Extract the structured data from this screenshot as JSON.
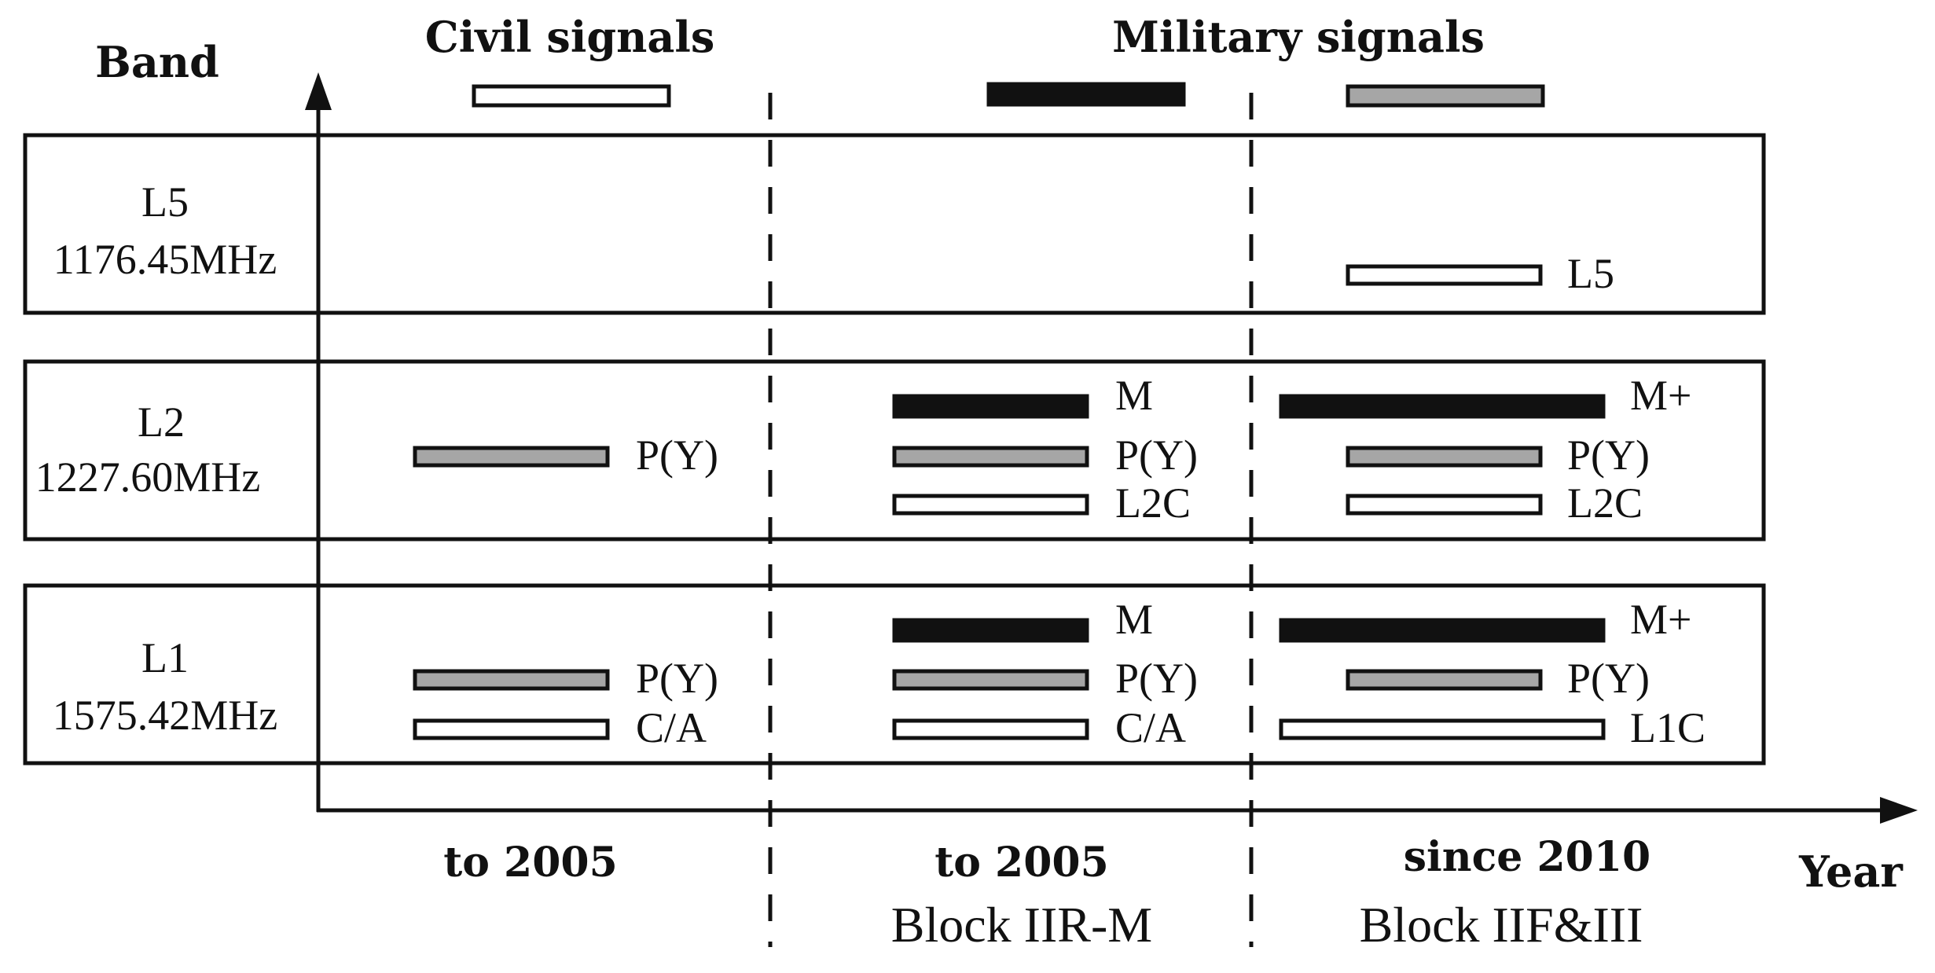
{
  "axes": {
    "y_label": "Band",
    "x_label": "Year"
  },
  "legend": [
    {
      "key": "civil",
      "label": "Civil signals",
      "fill": "#ffffff"
    },
    {
      "key": "military",
      "label": "Military signals",
      "fill": "#111111"
    },
    {
      "key": "legacy",
      "label": "",
      "fill": "#a6a6a6"
    }
  ],
  "bands": [
    {
      "key": "l5",
      "name": "L5",
      "frequency": "1176.45MHz"
    },
    {
      "key": "l2",
      "name": "L2",
      "frequency": "1227.60MHz"
    },
    {
      "key": "l1",
      "name": "L1",
      "frequency": "1575.42MHz"
    }
  ],
  "periods": [
    {
      "key": "p1",
      "year": "to 2005",
      "block": ""
    },
    {
      "key": "p2",
      "year": "to 2005",
      "block": "Block IIR-M"
    },
    {
      "key": "p3",
      "year": "since 2010",
      "block": "Block IIF&III"
    }
  ],
  "signals": [
    {
      "band": "l2",
      "period": "p1",
      "label": "P(Y)",
      "type": "legacy"
    },
    {
      "band": "l1",
      "period": "p1",
      "label": "P(Y)",
      "type": "legacy"
    },
    {
      "band": "l1",
      "period": "p1",
      "label": "C/A",
      "type": "civil"
    },
    {
      "band": "l2",
      "period": "p2",
      "label": "M",
      "type": "military"
    },
    {
      "band": "l2",
      "period": "p2",
      "label": "P(Y)",
      "type": "legacy"
    },
    {
      "band": "l2",
      "period": "p2",
      "label": "L2C",
      "type": "civil"
    },
    {
      "band": "l1",
      "period": "p2",
      "label": "M",
      "type": "military"
    },
    {
      "band": "l1",
      "period": "p2",
      "label": "P(Y)",
      "type": "legacy"
    },
    {
      "band": "l1",
      "period": "p2",
      "label": "C/A",
      "type": "civil"
    },
    {
      "band": "l5",
      "period": "p3",
      "label": "L5",
      "type": "civil"
    },
    {
      "band": "l2",
      "period": "p3",
      "label": "M+",
      "type": "military"
    },
    {
      "band": "l2",
      "period": "p3",
      "label": "P(Y)",
      "type": "legacy"
    },
    {
      "band": "l2",
      "period": "p3",
      "label": "L2C",
      "type": "civil"
    },
    {
      "band": "l1",
      "period": "p3",
      "label": "M+",
      "type": "military"
    },
    {
      "band": "l1",
      "period": "p3",
      "label": "P(Y)",
      "type": "legacy"
    },
    {
      "band": "l1",
      "period": "p3",
      "label": "L1C",
      "type": "civil"
    }
  ]
}
